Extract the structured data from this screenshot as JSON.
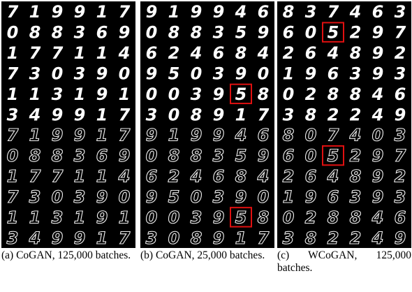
{
  "panels": [
    {
      "caption": "(a) CoGAN, 125,000 batches.",
      "rows": [
        "719917",
        "088369",
        "177114",
        "730390",
        "113191",
        "349917",
        "719917",
        "088369",
        "177114",
        "730390",
        "113191",
        "349917"
      ]
    },
    {
      "caption": "(b) CoGAN, 25,000 batches.",
      "rows": [
        "919946",
        "088359",
        "624684",
        "950390",
        "003958",
        "308917",
        "919946",
        "088359",
        "624684",
        "950390",
        "003958",
        "308917"
      ]
    },
    {
      "caption": "(c) WCoGAN, 125,000 batches.",
      "rows": [
        "837463",
        "605297",
        "264892",
        "196393",
        "028846",
        "382249",
        "807403",
        "605297",
        "264892",
        "196393",
        "028846",
        "382249"
      ]
    }
  ]
}
